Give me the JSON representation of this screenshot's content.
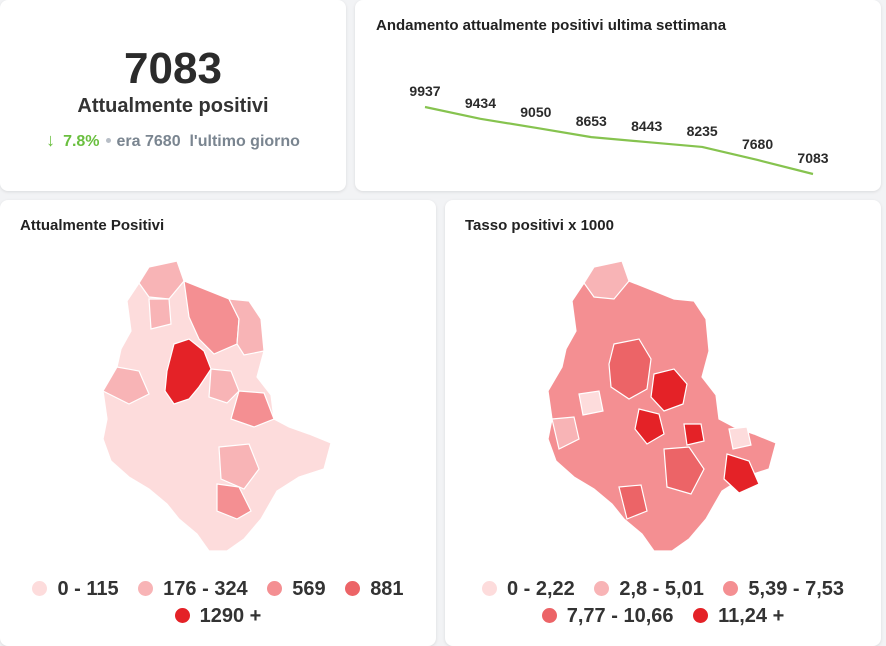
{
  "kpi": {
    "value": "7083",
    "label": "Attualmente positivi",
    "delta_pct": "7.8%",
    "prev_text": "era 7680",
    "prev_suffix": "l'ultimo giorno"
  },
  "trend": {
    "title": "Andamento attualmente positivi ultima settimana",
    "line_color": "#86c34f",
    "chart_data": {
      "type": "line",
      "title": "Andamento attualmente positivi ultima settimana",
      "series": [
        {
          "values": [
            9937,
            9434,
            9050,
            8653,
            8443,
            8235,
            7680,
            7083
          ]
        }
      ],
      "labels": [
        "9937",
        "9434",
        "9050",
        "8653",
        "8443",
        "8235",
        "7680",
        "7083"
      ]
    }
  },
  "map_left": {
    "title": "Attualmente Positivi",
    "legend": [
      {
        "label": "0 - 115",
        "color": "#fddcdc"
      },
      {
        "label": "176 - 324",
        "color": "#f8b4b6"
      },
      {
        "label": "569",
        "color": "#f48f92"
      },
      {
        "label": "881",
        "color": "#ec6467"
      },
      {
        "label": "1290 +",
        "color": "#e42227"
      }
    ]
  },
  "map_right": {
    "title": "Tasso positivi x 1000",
    "legend": [
      {
        "label": "0 - 2,22",
        "color": "#fddcdc"
      },
      {
        "label": "2,8 - 5,01",
        "color": "#f8b4b6"
      },
      {
        "label": "5,39 - 7,53",
        "color": "#f48f92"
      },
      {
        "label": "7,77 - 10,66",
        "color": "#ec6467"
      },
      {
        "label": "11,24 +",
        "color": "#e42227"
      }
    ]
  }
}
